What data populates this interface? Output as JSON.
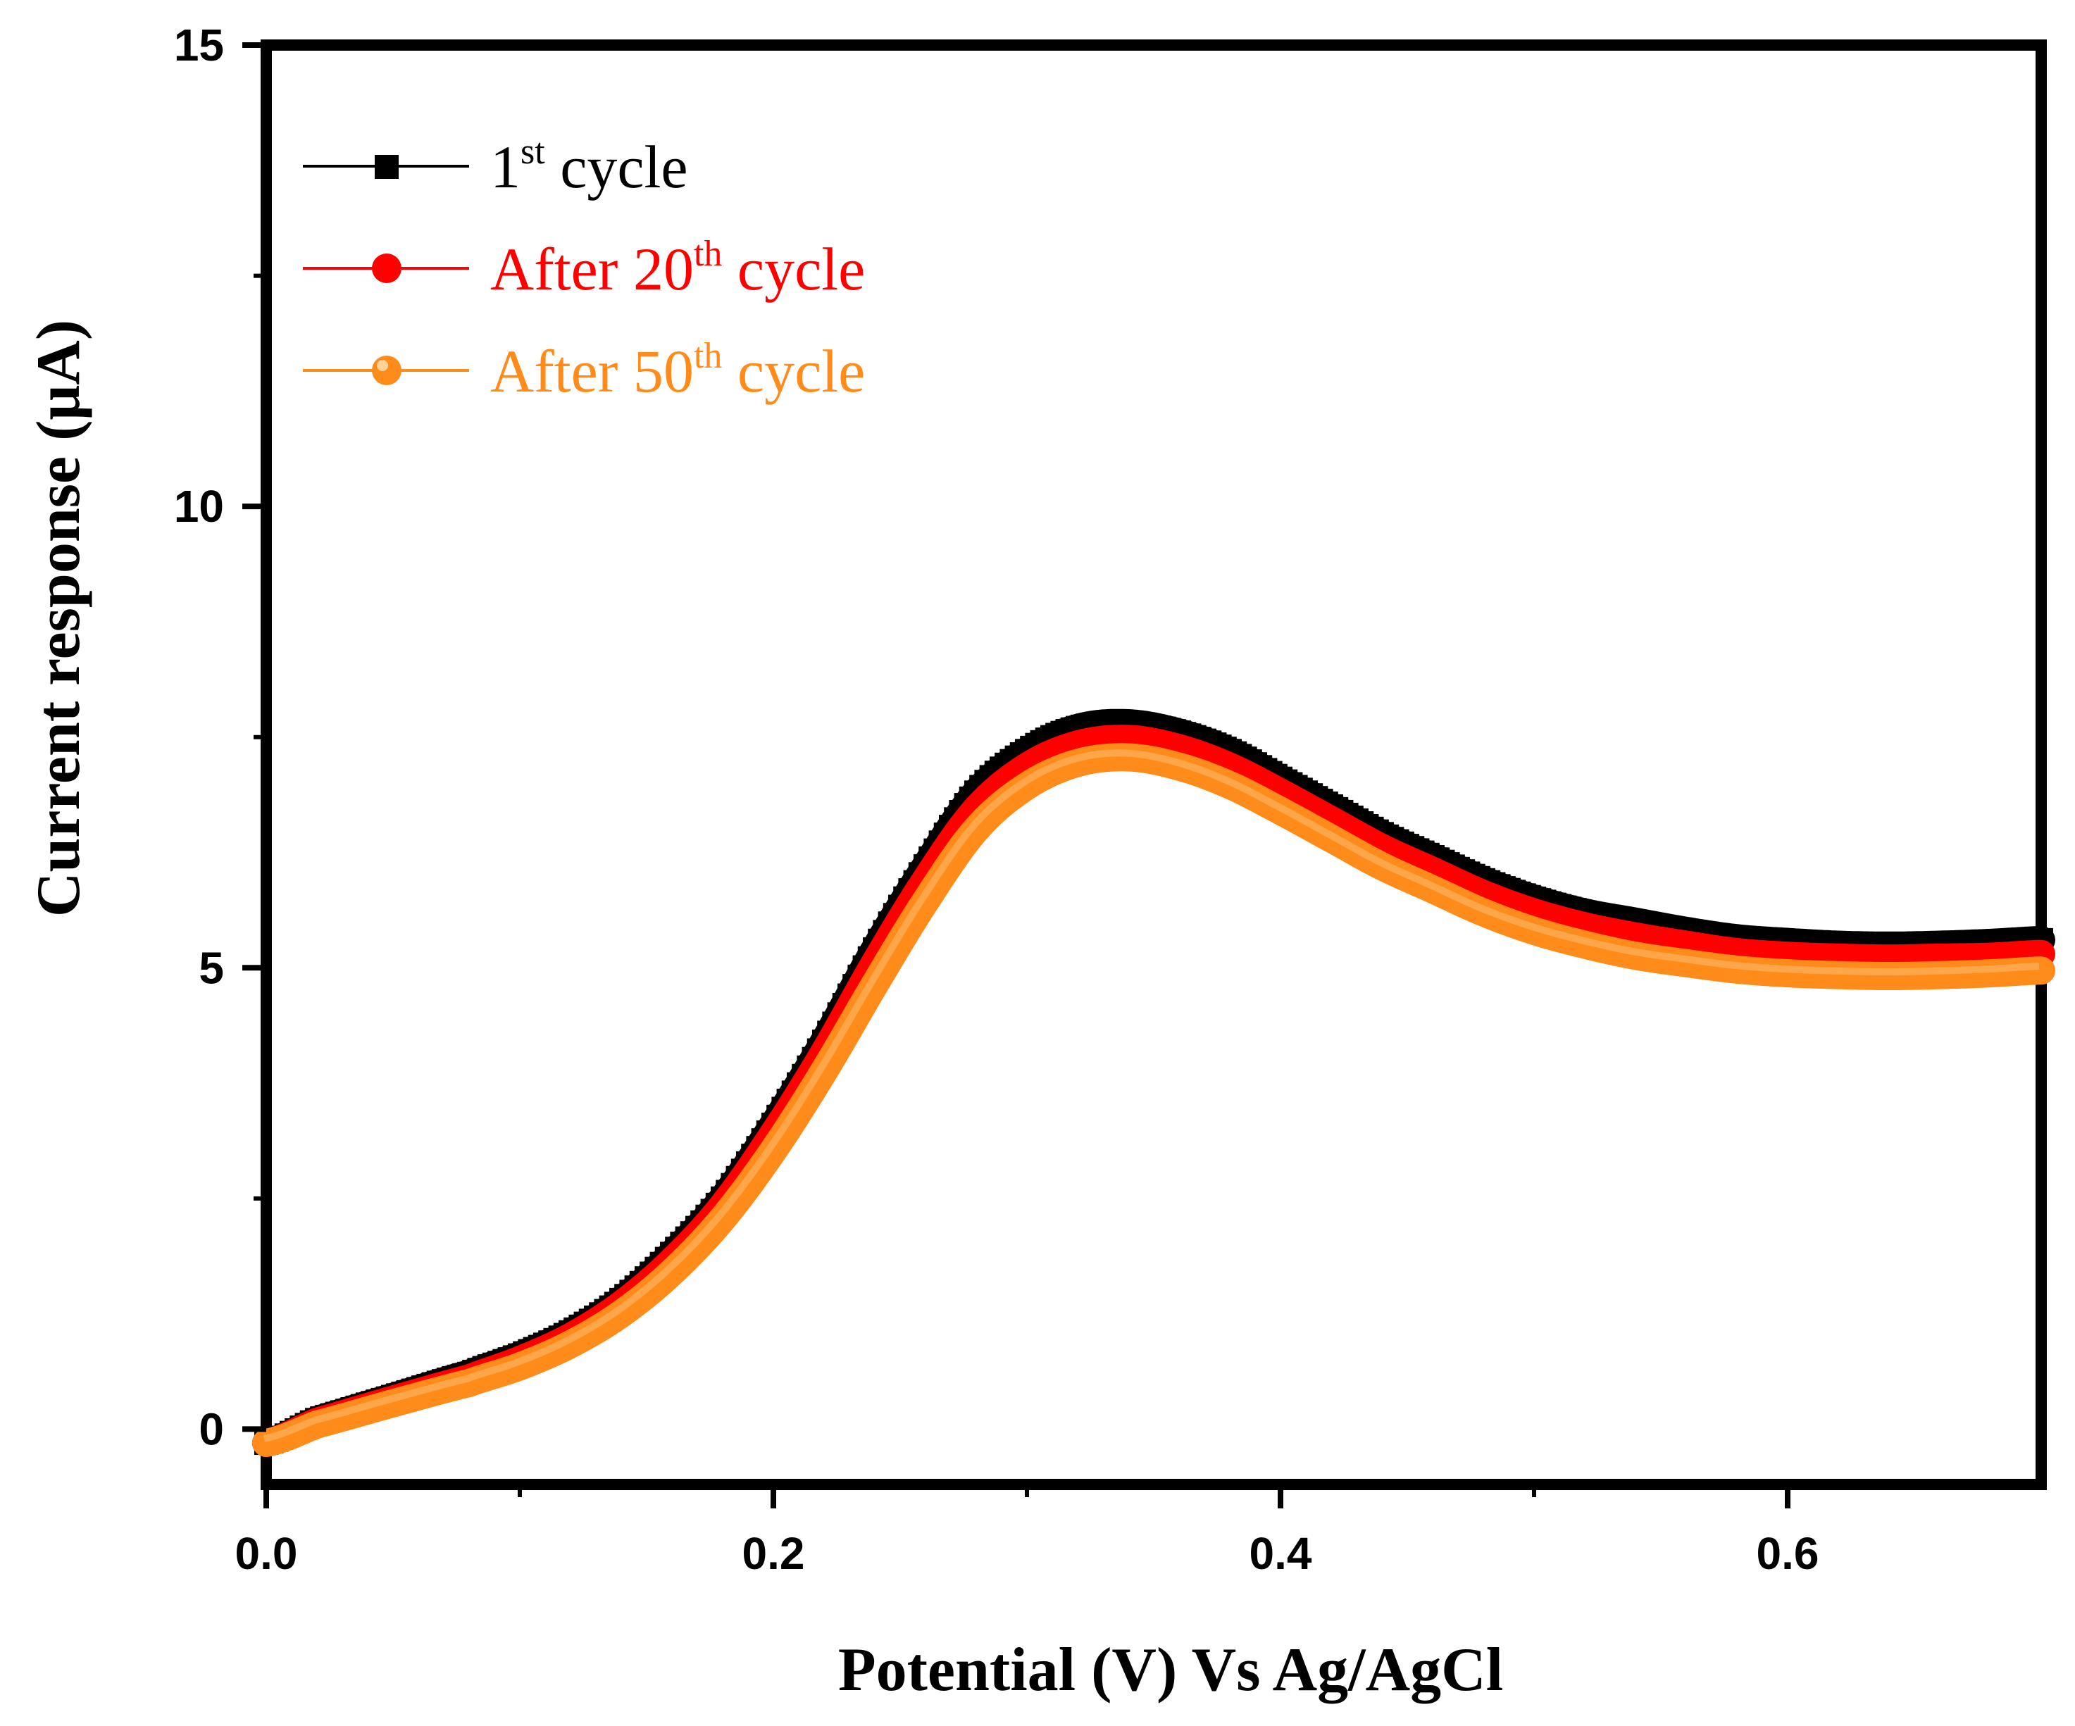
{
  "chart_data": {
    "type": "line",
    "title": "",
    "xlabel": "Potential (V) Vs Ag/AgCl",
    "ylabel": "Current response (μA)",
    "xlim": [
      0.0,
      0.7
    ],
    "ylim": [
      -0.6,
      15
    ],
    "grid": false,
    "legend_position": "top-left",
    "x_ticks": [
      {
        "value": 0.0,
        "label": "0.0"
      },
      {
        "value": 0.2,
        "label": "0.2"
      },
      {
        "value": 0.4,
        "label": "0.4"
      },
      {
        "value": 0.6,
        "label": "0.6"
      }
    ],
    "x_minor_ticks": [
      0.1,
      0.3,
      0.5
    ],
    "y_ticks": [
      {
        "value": 0,
        "label": "0"
      },
      {
        "value": 5,
        "label": "5"
      },
      {
        "value": 10,
        "label": "10"
      },
      {
        "value": 15,
        "label": "15"
      }
    ],
    "y_minor_ticks": [
      2.5,
      7.5,
      12.5
    ],
    "x": [
      0.0,
      0.02,
      0.05,
      0.08,
      0.1,
      0.12,
      0.14,
      0.16,
      0.18,
      0.2,
      0.22,
      0.24,
      0.26,
      0.28,
      0.3,
      0.32,
      0.34,
      0.36,
      0.38,
      0.4,
      0.42,
      0.44,
      0.46,
      0.48,
      0.5,
      0.52,
      0.54,
      0.56,
      0.58,
      0.6,
      0.62,
      0.64,
      0.66,
      0.68,
      0.7
    ],
    "series": [
      {
        "name": "1st cycle",
        "label_main": "1",
        "label_sup": "st",
        "label_tail": " cycle",
        "color": "#000000",
        "marker": "square",
        "values": [
          -0.15,
          0.1,
          0.35,
          0.6,
          0.8,
          1.05,
          1.4,
          1.9,
          2.5,
          3.3,
          4.2,
          5.2,
          6.1,
          6.9,
          7.35,
          7.6,
          7.65,
          7.55,
          7.35,
          7.05,
          6.75,
          6.45,
          6.2,
          5.95,
          5.75,
          5.6,
          5.5,
          5.4,
          5.32,
          5.28,
          5.25,
          5.24,
          5.25,
          5.27,
          5.3
        ]
      },
      {
        "name": "After 20th cycle",
        "label_main": "After 20",
        "label_sup": "th",
        "label_tail": " cycle",
        "color": "#ff0000",
        "marker": "circle",
        "values": [
          -0.15,
          0.08,
          0.32,
          0.55,
          0.75,
          1.0,
          1.35,
          1.82,
          2.42,
          3.2,
          4.08,
          5.05,
          5.95,
          6.72,
          7.18,
          7.42,
          7.48,
          7.38,
          7.18,
          6.9,
          6.6,
          6.3,
          6.05,
          5.8,
          5.6,
          5.45,
          5.34,
          5.25,
          5.17,
          5.13,
          5.11,
          5.1,
          5.11,
          5.12,
          5.15
        ]
      },
      {
        "name": "After 50th cycle",
        "label_main": "After 50",
        "label_sup": "th",
        "label_tail": " cycle",
        "color": "#ff8c1a",
        "marker": "circle",
        "values": [
          -0.15,
          0.05,
          0.28,
          0.5,
          0.68,
          0.92,
          1.25,
          1.7,
          2.28,
          3.02,
          3.88,
          4.82,
          5.72,
          6.5,
          6.97,
          7.22,
          7.28,
          7.18,
          6.98,
          6.7,
          6.4,
          6.1,
          5.85,
          5.6,
          5.4,
          5.25,
          5.13,
          5.05,
          4.98,
          4.94,
          4.92,
          4.91,
          4.92,
          4.94,
          4.97
        ]
      }
    ]
  }
}
